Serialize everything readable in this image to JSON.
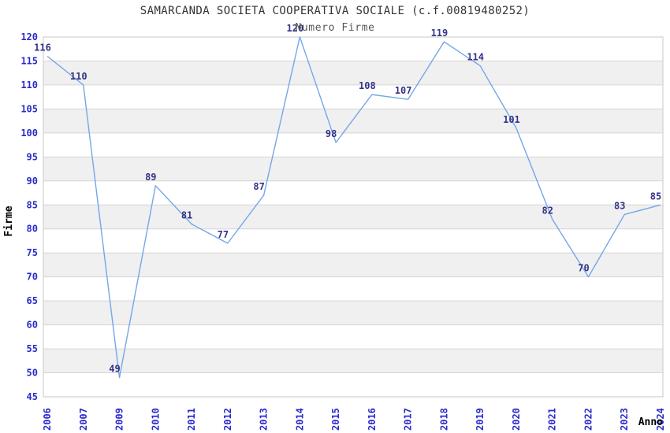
{
  "chart_data": {
    "type": "line",
    "title": "SAMARCANDA SOCIETA COOPERATIVA SOCIALE (c.f.00819480252)",
    "subtitle": "Numero Firme",
    "xlabel": "Anno",
    "ylabel": "Firme",
    "categories": [
      "2006",
      "2007",
      "2009",
      "2010",
      "2011",
      "2012",
      "2013",
      "2014",
      "2015",
      "2016",
      "2017",
      "2018",
      "2019",
      "2020",
      "2021",
      "2022",
      "2023",
      "2024"
    ],
    "values": [
      116,
      110,
      49,
      89,
      81,
      77,
      87,
      120,
      98,
      108,
      107,
      119,
      114,
      101,
      82,
      70,
      83,
      85
    ],
    "ylim": [
      45,
      120
    ],
    "ytick_step": 5,
    "yticks": [
      45,
      50,
      55,
      60,
      65,
      70,
      75,
      80,
      85,
      90,
      95,
      100,
      105,
      110,
      115,
      120
    ],
    "grid": true,
    "legend": "none",
    "layout": {
      "alternating_bands": true
    },
    "colors": {
      "line": "#74a7e8",
      "tick_label": "#2a2acc",
      "data_label": "#333388",
      "band": "#f0f0f0",
      "grid": "#d6d6d6",
      "border": "#c8c8c8",
      "title": "#333333",
      "subtitle": "#555555",
      "axis_title": "#000000"
    }
  }
}
